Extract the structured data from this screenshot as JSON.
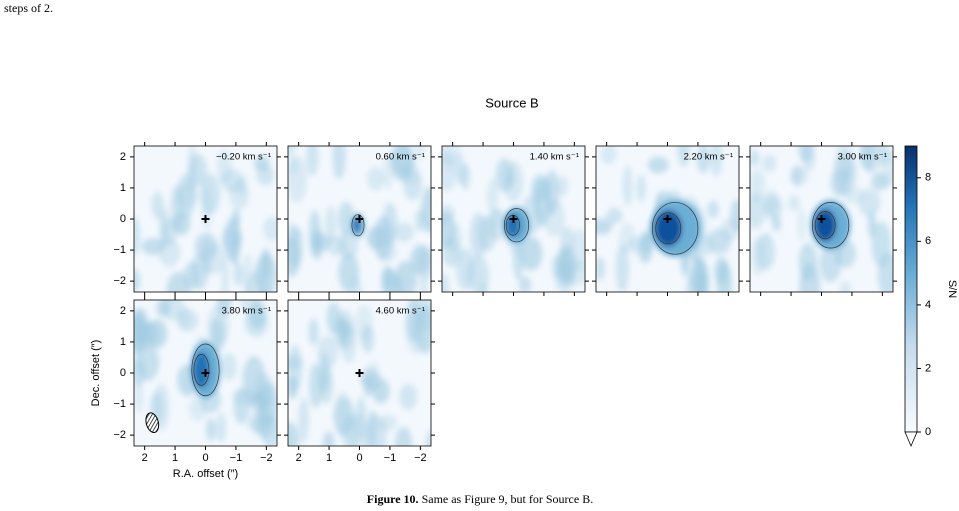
{
  "text_top": "steps of 2.",
  "figure": {
    "title": "Source B",
    "panels": [
      {
        "label": "−0.20 km s⁻¹"
      },
      {
        "label": "0.60 km s⁻¹"
      },
      {
        "label": "1.40 km s⁻¹"
      },
      {
        "label": "2.20 km s⁻¹"
      },
      {
        "label": "3.00 km s⁻¹"
      },
      {
        "label": "3.80 km s⁻¹"
      },
      {
        "label": "4.60 km s⁻¹"
      }
    ],
    "xlabel": "R.A. offset (″)",
    "ylabel": "Dec. offset (″)",
    "xlim": [
      2.35,
      -2.35
    ],
    "ylim": [
      -2.35,
      2.35
    ],
    "xticks": [
      2,
      1,
      0,
      {
        "value": -1,
        "label": "−1"
      },
      {
        "value": -2,
        "label": "−2"
      }
    ],
    "yticks": [
      {
        "value": -2,
        "label": "−2"
      },
      {
        "value": -1,
        "label": "−1"
      },
      0,
      1,
      2
    ],
    "colorbar": {
      "label": "S/N",
      "lim": [
        0,
        9
      ],
      "ticks": [
        0,
        2,
        4,
        6,
        8
      ]
    }
  },
  "caption": {
    "number": "Figure 10.",
    "text": "Same as Figure 9, but for Source B."
  }
}
